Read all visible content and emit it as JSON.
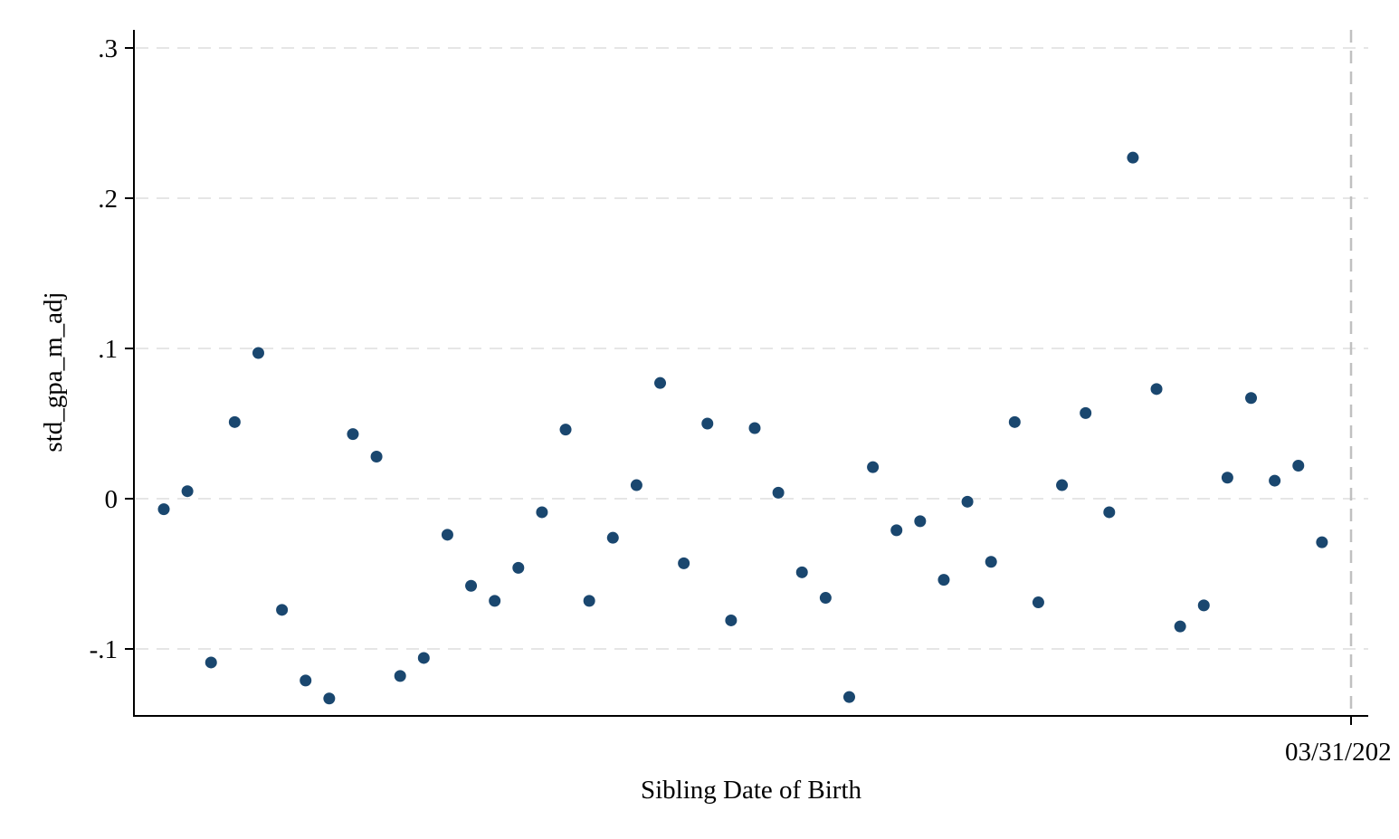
{
  "chart_data": {
    "type": "scatter",
    "title": "",
    "xlabel": "Sibling Date of Birth",
    "ylabel": "std_gpa_m_adj",
    "ylim": [
      -0.144,
      0.315
    ],
    "y_ticks": [
      {
        "value": -0.1,
        "label": "-.1"
      },
      {
        "value": 0,
        "label": "0"
      },
      {
        "value": 0.1,
        "label": ".1"
      },
      {
        "value": 0.2,
        "label": ".2"
      },
      {
        "value": 0.3,
        "label": ".3"
      }
    ],
    "x_tick_label": "03/31/202",
    "cutoff_line": "dashed vertical at 03/31/202",
    "grid": "horizontal dashed at y ticks",
    "legend": "none",
    "colors": {
      "marker": "#1a476f",
      "grid": "#e6e6e6",
      "cutoff": "#c0c0c0",
      "axis": "#000000"
    },
    "series": [
      {
        "points": [
          {
            "x": -48,
            "y": -0.007
          },
          {
            "x": -47,
            "y": 0.005
          },
          {
            "x": -46,
            "y": -0.109
          },
          {
            "x": -45,
            "y": 0.051
          },
          {
            "x": -44,
            "y": 0.097
          },
          {
            "x": -43,
            "y": -0.074
          },
          {
            "x": -42,
            "y": -0.121
          },
          {
            "x": -41,
            "y": -0.133
          },
          {
            "x": -40,
            "y": 0.043
          },
          {
            "x": -39,
            "y": 0.028
          },
          {
            "x": -38,
            "y": -0.118
          },
          {
            "x": -37,
            "y": -0.106
          },
          {
            "x": -36,
            "y": -0.024
          },
          {
            "x": -35,
            "y": -0.058
          },
          {
            "x": -34,
            "y": -0.068
          },
          {
            "x": -33,
            "y": -0.046
          },
          {
            "x": -32,
            "y": -0.009
          },
          {
            "x": -31,
            "y": 0.046
          },
          {
            "x": -30,
            "y": -0.068
          },
          {
            "x": -29,
            "y": -0.026
          },
          {
            "x": -28,
            "y": 0.009
          },
          {
            "x": -27,
            "y": 0.077
          },
          {
            "x": -26,
            "y": -0.043
          },
          {
            "x": -25,
            "y": 0.05
          },
          {
            "x": -24,
            "y": -0.081
          },
          {
            "x": -23,
            "y": 0.047
          },
          {
            "x": -22,
            "y": 0.004
          },
          {
            "x": -21,
            "y": -0.049
          },
          {
            "x": -20,
            "y": -0.066
          },
          {
            "x": -19,
            "y": -0.132
          },
          {
            "x": -18,
            "y": 0.021
          },
          {
            "x": -17,
            "y": -0.021
          },
          {
            "x": -16,
            "y": -0.015
          },
          {
            "x": -15,
            "y": -0.054
          },
          {
            "x": -14,
            "y": -0.002
          },
          {
            "x": -13,
            "y": -0.042
          },
          {
            "x": -12,
            "y": 0.051
          },
          {
            "x": -11,
            "y": -0.069
          },
          {
            "x": -10,
            "y": 0.009
          },
          {
            "x": -9,
            "y": 0.057
          },
          {
            "x": -8,
            "y": -0.009
          },
          {
            "x": -7,
            "y": 0.227
          },
          {
            "x": -6,
            "y": 0.073
          },
          {
            "x": -5,
            "y": -0.085
          },
          {
            "x": -4,
            "y": -0.071
          },
          {
            "x": -3,
            "y": 0.014
          },
          {
            "x": -2,
            "y": 0.067
          },
          {
            "x": -1,
            "y": 0.012
          },
          {
            "x": 0,
            "y": 0.022
          },
          {
            "x": 1,
            "y": -0.029
          }
        ]
      }
    ]
  }
}
